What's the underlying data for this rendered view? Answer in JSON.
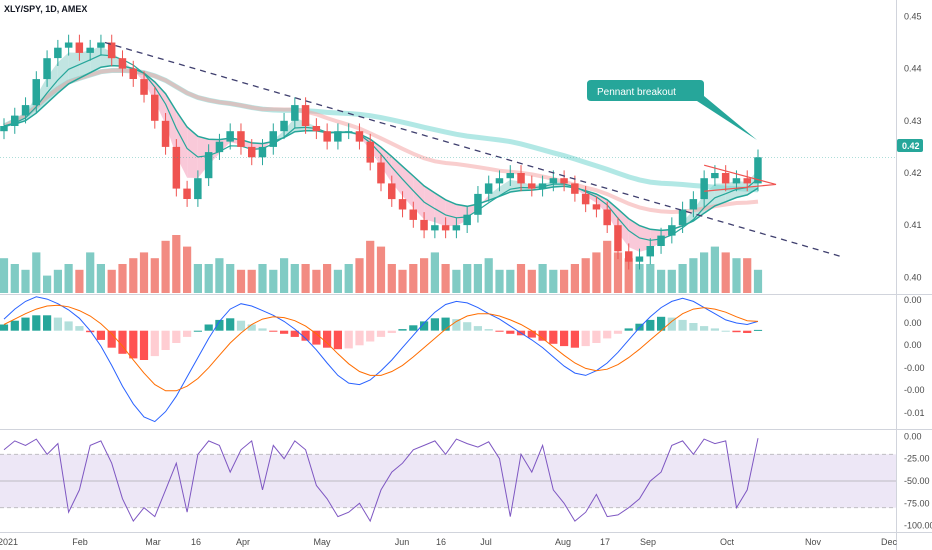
{
  "symbol": "XLY/SPY, 1D, AMEX",
  "colors": {
    "up": "#26a69a",
    "down": "#ef5350",
    "vol_up": "#80cbc4",
    "vol_down": "#f28b82",
    "ema_fast": "#26a69a",
    "ema_band_up": "#b2dfdb",
    "ema_band_down": "#f8bbd0",
    "sma_slow": "#7fd8d4",
    "sma_red": "#f4a6a6",
    "trendline": "#3f3f6e",
    "callout": "#26a69a",
    "macd_line": "#2962ff",
    "signal_line": "#ff6d00",
    "hist_up_strong": "#26a69a",
    "hist_up_weak": "#b2dfdb",
    "hist_down_strong": "#ff5252",
    "hist_down_weak": "#ffcdd2",
    "osc_line": "#7e57c2",
    "osc_band": "#ede7f6",
    "grid": "#f0f3fa"
  },
  "annotation": {
    "text": "Pennant breakout"
  },
  "price_tag": "0.42",
  "x_axis_labels": [
    "2021",
    "Feb",
    "Mar",
    "16",
    "Apr",
    "May",
    "Jun",
    "16",
    "Jul",
    "Aug",
    "17",
    "Sep",
    "Oct",
    "Nov",
    "Dec"
  ],
  "chart_data": [
    {
      "type": "line",
      "panel": "price",
      "title": "XLY/SPY, 1D, AMEX",
      "x_tick_labels": [
        "2021",
        "Feb",
        "Mar",
        "16",
        "Apr",
        "May",
        "Jun",
        "16",
        "Jul",
        "Aug",
        "17",
        "Sep",
        "Oct",
        "Nov",
        "Dec"
      ],
      "y_tick_labels": [
        "0.45",
        "0.44",
        "0.43",
        "0.42",
        "0.41",
        "0.40"
      ],
      "ylim": [
        0.397,
        0.452
      ],
      "series": [
        {
          "values": [
            0.429,
            0.431,
            0.433,
            0.438,
            0.442,
            0.444,
            0.445,
            0.443,
            0.444,
            0.445,
            0.442,
            0.44,
            0.438,
            0.435,
            0.43,
            0.425,
            0.417,
            0.415,
            0.419,
            0.424,
            0.426,
            0.428,
            0.425,
            0.423,
            0.425,
            0.428,
            0.43,
            0.433,
            0.429,
            0.428,
            0.426,
            0.428,
            0.428,
            0.426,
            0.422,
            0.418,
            0.415,
            0.413,
            0.411,
            0.409,
            0.41,
            0.409,
            0.41,
            0.412,
            0.416,
            0.418,
            0.419,
            0.42,
            0.418,
            0.417,
            0.418,
            0.419,
            0.418,
            0.416,
            0.414,
            0.413,
            0.41,
            0.405,
            0.403,
            0.404,
            0.406,
            0.408,
            0.41,
            0.413,
            0.415,
            0.419,
            0.42,
            0.418,
            0.419,
            0.418,
            0.423
          ]
        }
      ],
      "trendline": {
        "from": [
          0.445,
          "Feb"
        ],
        "to": [
          0.404,
          "Nov"
        ]
      },
      "pattern": "pennant",
      "annotations": [
        "Pennant breakout"
      ],
      "last_value_label": "0.42",
      "grid": false
    },
    {
      "type": "bar",
      "panel": "volume",
      "values": [
        6,
        5,
        4,
        7,
        3,
        4,
        5,
        4,
        7,
        5,
        4,
        5,
        6,
        7,
        6,
        9,
        10,
        8,
        5,
        5,
        6,
        5,
        4,
        4,
        5,
        4,
        6,
        5,
        5,
        4,
        5,
        4,
        5,
        6,
        9,
        8,
        5,
        4,
        5,
        6,
        7,
        5,
        4,
        5,
        5,
        6,
        4,
        4,
        5,
        4,
        5,
        4,
        4,
        5,
        6,
        7,
        9,
        7,
        6,
        5,
        5,
        4,
        4,
        5,
        6,
        7,
        8,
        7,
        6,
        6,
        4
      ]
    },
    {
      "type": "bar",
      "panel": "macd",
      "y_tick_labels": [
        "0.00",
        "0.00",
        "0.00",
        "-0.00",
        "-0.00",
        "-0.01"
      ],
      "ylim": [
        -0.0125,
        0.0045
      ],
      "histogram": [
        0.0008,
        0.0013,
        0.0017,
        0.002,
        0.002,
        0.0017,
        0.0012,
        0.0006,
        -0.0002,
        -0.0012,
        -0.0022,
        -0.003,
        -0.0036,
        -0.0038,
        -0.0033,
        -0.0025,
        -0.0016,
        -0.0008,
        0.0,
        0.0008,
        0.0014,
        0.0016,
        0.0013,
        0.0008,
        0.0003,
        -0.0001,
        -0.0004,
        -0.0008,
        -0.0013,
        -0.0018,
        -0.0022,
        -0.0024,
        -0.0023,
        -0.0019,
        -0.0014,
        -0.0008,
        -0.0003,
        0.0002,
        0.0007,
        0.0012,
        0.0016,
        0.0017,
        0.0015,
        0.0011,
        0.0006,
        0.0002,
        -0.0001,
        -0.0004,
        -0.0006,
        -0.0009,
        -0.0013,
        -0.0017,
        -0.002,
        -0.0022,
        -0.002,
        -0.0016,
        -0.001,
        -0.0004,
        0.0003,
        0.0009,
        0.0014,
        0.0018,
        0.0017,
        0.0014,
        0.001,
        0.0006,
        0.0003,
        0.0,
        -0.0002,
        -0.0003,
        0.0001
      ],
      "macd_line": [
        0.0015,
        0.0028,
        0.0038,
        0.0044,
        0.0041,
        0.0035,
        0.0027,
        0.0016,
        0.0,
        -0.002,
        -0.0045,
        -0.0072,
        -0.0095,
        -0.0112,
        -0.0118,
        -0.0105,
        -0.0085,
        -0.006,
        -0.0035,
        -0.001,
        0.0012,
        0.0028,
        0.0035,
        0.0032,
        0.0026,
        0.002,
        0.0012,
        0.0002,
        -0.001,
        -0.0025,
        -0.0042,
        -0.0058,
        -0.0068,
        -0.007,
        -0.0064,
        -0.0052,
        -0.0038,
        -0.0022,
        -0.0006,
        0.001,
        0.0024,
        0.0034,
        0.0038,
        0.0036,
        0.003,
        0.0022,
        0.0015,
        0.0006,
        -0.0003,
        -0.0012,
        -0.0022,
        -0.0034,
        -0.0046,
        -0.0055,
        -0.0058,
        -0.0052,
        -0.0042,
        -0.0028,
        -0.0012,
        0.0004,
        0.0018,
        0.003,
        0.0038,
        0.0042,
        0.0038,
        0.003,
        0.0022,
        0.0014,
        0.001,
        0.0008,
        0.0012
      ],
      "signal_line": [
        0.0008,
        0.0015,
        0.0022,
        0.0028,
        0.0032,
        0.0033,
        0.0031,
        0.0026,
        0.0019,
        0.0009,
        -0.0004,
        -0.002,
        -0.0038,
        -0.0055,
        -0.007,
        -0.0078,
        -0.0078,
        -0.0072,
        -0.0062,
        -0.0048,
        -0.0032,
        -0.0016,
        -0.0003,
        0.0008,
        0.0015,
        0.0018,
        0.0017,
        0.0013,
        0.0006,
        -0.0004,
        -0.0016,
        -0.003,
        -0.0043,
        -0.0053,
        -0.0058,
        -0.0058,
        -0.0053,
        -0.0045,
        -0.0034,
        -0.0022,
        -0.001,
        0.0002,
        0.0012,
        0.0019,
        0.0022,
        0.0022,
        0.0019,
        0.0014,
        0.0008,
        0.0,
        -0.001,
        -0.0021,
        -0.0032,
        -0.0042,
        -0.0049,
        -0.0052,
        -0.005,
        -0.0044,
        -0.0035,
        -0.0024,
        -0.0012,
        0.0,
        0.0012,
        0.0022,
        0.0028,
        0.003,
        0.0028,
        0.0024,
        0.0018,
        0.0013,
        0.0012
      ]
    },
    {
      "type": "line",
      "panel": "oscillator",
      "y_tick_labels": [
        "0.00",
        "-25.00",
        "-50.00",
        "-75.00",
        "-100.00"
      ],
      "ylim": [
        -105,
        5
      ],
      "reference_levels": [
        -20,
        -50,
        -80
      ],
      "values": [
        -15,
        -5,
        -10,
        -3,
        -20,
        -8,
        -85,
        -60,
        -10,
        -5,
        -30,
        -70,
        -95,
        -80,
        -90,
        -60,
        -30,
        -85,
        -20,
        -5,
        -10,
        -40,
        -15,
        -5,
        -60,
        -10,
        -25,
        -5,
        -15,
        -55,
        -70,
        -90,
        -85,
        -75,
        -95,
        -60,
        -40,
        -30,
        -15,
        -10,
        -5,
        -20,
        -3,
        -8,
        -12,
        -6,
        -25,
        -90,
        -20,
        -40,
        -10,
        -60,
        -75,
        -95,
        -85,
        -65,
        -90,
        -88,
        -80,
        -70,
        -50,
        -40,
        -10,
        -5,
        -20,
        -3,
        -8,
        -5,
        -80,
        -60,
        -2
      ]
    }
  ]
}
